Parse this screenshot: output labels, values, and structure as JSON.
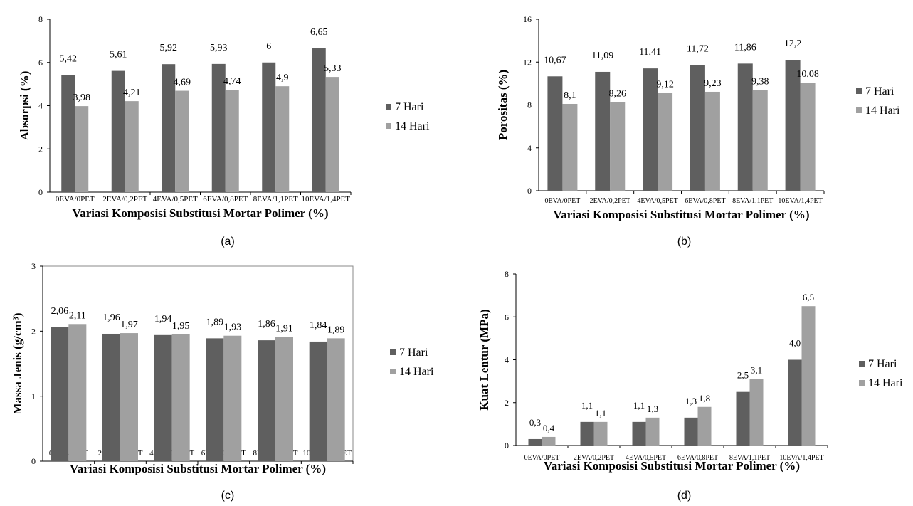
{
  "legend": {
    "series_1": "7 Hari",
    "series_2": "14 Hari"
  },
  "colors": {
    "series_1": "#5f5f5f",
    "series_2": "#a0a0a0",
    "axis": "#000000",
    "plot_border": "#8a8a8a",
    "background": "#ffffff"
  },
  "chart_data": [
    {
      "caption": "(a)",
      "type": "bar",
      "title": "",
      "xlabel": "Variasi Komposisi Substitusi Mortar Polimer (%)",
      "ylabel": "Absorpsi (%)",
      "categories": [
        "0EVA/0PET",
        "2EVA/0,2PET",
        "4EVA/0,5PET",
        "6EVA/0,8PET",
        "8EVA/1,1PET",
        "10EVA/1,4PET"
      ],
      "yticks": [
        "0",
        "2",
        "4",
        "6",
        "8"
      ],
      "ylim": [
        0,
        8
      ],
      "grid": false,
      "legend_position": "right",
      "series": [
        {
          "name": "7 Hari",
          "values": [
            5.42,
            5.61,
            5.92,
            5.93,
            6,
            6.65
          ],
          "labels": [
            "5,42",
            "5,61",
            "5,92",
            "5,93",
            "6",
            "6,65"
          ]
        },
        {
          "name": "14 Hari",
          "values": [
            3.98,
            4.21,
            4.69,
            4.74,
            4.9,
            5.33
          ],
          "labels": [
            "3,98",
            "4,21",
            "4,69",
            "4,74",
            "4,9",
            "5,33"
          ]
        }
      ]
    },
    {
      "caption": "(b)",
      "type": "bar",
      "title": "",
      "xlabel": "Variasi Komposisi Substitusi Mortar Polimer (%)",
      "ylabel": "Porositas (%)",
      "categories": [
        "0EVA/0PET",
        "2EVA/0,2PET",
        "4EVA/0,5PET",
        "6EVA/0,8PET",
        "8EVA/1,1PET",
        "10EVA/1,4PET"
      ],
      "yticks": [
        "0",
        "4",
        "8",
        "12",
        "16"
      ],
      "ylim": [
        0,
        16
      ],
      "grid": false,
      "legend_position": "right",
      "series": [
        {
          "name": "7 Hari",
          "values": [
            10.67,
            11.09,
            11.41,
            11.72,
            11.86,
            12.2
          ],
          "labels": [
            "10,67",
            "11,09",
            "11,41",
            "11,72",
            "11,86",
            "12,2"
          ]
        },
        {
          "name": "14 Hari",
          "values": [
            8.1,
            8.26,
            9.12,
            9.23,
            9.38,
            10.08
          ],
          "labels": [
            "8,1",
            "8,26",
            "9,12",
            "9,23",
            "9,38",
            "10,08"
          ]
        }
      ]
    },
    {
      "caption": "(c)",
      "type": "bar",
      "title": "",
      "xlabel": "Variasi Komposisi Substitusi Mortar Polimer (%)",
      "ylabel": "Massa Jenis (g/cm³)",
      "categories": [
        "0EVA/0PET",
        "2EVA/0,2PET",
        "4EVA/0,5PET",
        "6EVA/0,8PET",
        "8EVA/1,1PET",
        "10EVA/1,4PET"
      ],
      "yticks": [
        "0",
        "1",
        "2",
        "3"
      ],
      "ylim": [
        0,
        3
      ],
      "grid": false,
      "legend_position": "right",
      "series": [
        {
          "name": "7 Hari",
          "values": [
            2.06,
            1.96,
            1.94,
            1.89,
            1.86,
            1.84
          ],
          "labels": [
            "2,06",
            "1,96",
            "1,94",
            "1,89",
            "1,86",
            "1,84"
          ]
        },
        {
          "name": "14 Hari",
          "values": [
            2.11,
            1.97,
            1.95,
            1.93,
            1.91,
            1.89
          ],
          "labels": [
            "2,11",
            "1,97",
            "1,95",
            "1,93",
            "1,91",
            "1,89"
          ]
        }
      ]
    },
    {
      "caption": "(d)",
      "type": "bar",
      "title": "",
      "xlabel": "Variasi Komposisi Substitusi Mortar Polimer (%)",
      "ylabel": "Kuat Lentur (MPa)",
      "categories": [
        "0EVA/0PET",
        "2EVA/0,2PET",
        "4EVA/0,5PET",
        "6EVA/0,8PET",
        "8EVA/1,1PET",
        "10EVA/1,4PET"
      ],
      "yticks": [
        "0",
        "2",
        "4",
        "6",
        "8"
      ],
      "ylim": [
        0,
        8
      ],
      "grid": false,
      "legend_position": "right",
      "series": [
        {
          "name": "7 Hari",
          "values": [
            0.3,
            1.1,
            1.1,
            1.3,
            2.5,
            4.0
          ],
          "labels": [
            "0,3",
            "1,1",
            "1,1",
            "1,3",
            "2,5",
            "4,0"
          ]
        },
        {
          "name": "14 Hari",
          "values": [
            0.4,
            1.1,
            1.3,
            1.8,
            3.1,
            6.5
          ],
          "labels": [
            "0,4",
            "1,1",
            "1,3",
            "1,8",
            "3,1",
            "6,5"
          ]
        }
      ]
    }
  ]
}
